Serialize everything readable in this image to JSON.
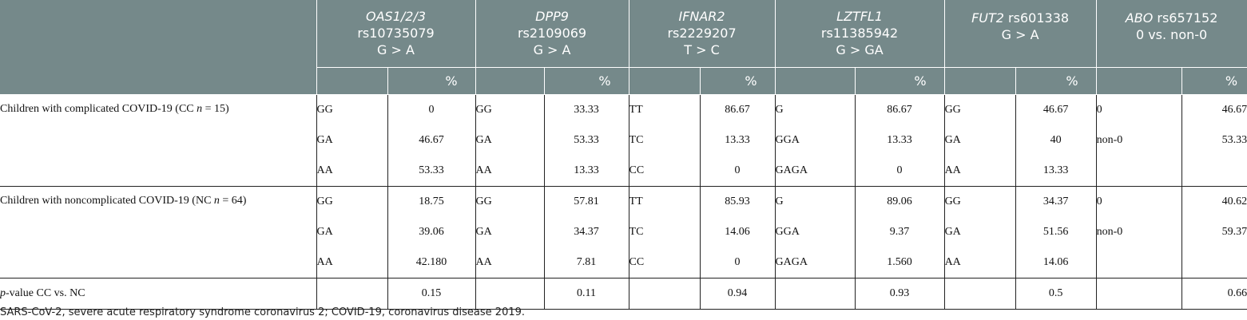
{
  "header": {
    "genes": [
      {
        "gene": "OAS1/2/3",
        "gene_suffix": "",
        "line2": "rs10735079",
        "line3": "G > A"
      },
      {
        "gene": "DPP9",
        "gene_suffix": "",
        "line2": "rs2109069",
        "line3": "G > A"
      },
      {
        "gene": "IFNAR2",
        "gene_suffix": "",
        "line2": "rs2229207",
        "line3": "T > C"
      },
      {
        "gene": "LZTFL1",
        "gene_suffix": "",
        "line2": "rs11385942",
        "line3": "G > GA"
      },
      {
        "gene": "FUT2",
        "gene_suffix": " rs601338",
        "line2": "G > A",
        "line3": ""
      },
      {
        "gene": "ABO",
        "gene_suffix": " rs657152",
        "line2": "0 vs. non-0",
        "line3": ""
      }
    ],
    "pct_label": "%"
  },
  "groups": [
    {
      "label_pre": "Children with complicated COVID-19 (CC ",
      "label_n": "n",
      "label_post": " = 15)",
      "rows": [
        {
          "cells": [
            [
              "GG",
              "0"
            ],
            [
              "GG",
              "33.33"
            ],
            [
              "TT",
              "86.67"
            ],
            [
              "G",
              "86.67"
            ],
            [
              "GG",
              "46.67"
            ],
            [
              "0",
              "46.67"
            ]
          ]
        },
        {
          "cells": [
            [
              "GA",
              "46.67"
            ],
            [
              "GA",
              "53.33"
            ],
            [
              "TC",
              "13.33"
            ],
            [
              "GGA",
              "13.33"
            ],
            [
              "GA",
              "40"
            ],
            [
              "non-0",
              "53.33"
            ]
          ]
        },
        {
          "cells": [
            [
              "AA",
              "53.33"
            ],
            [
              "AA",
              "13.33"
            ],
            [
              "CC",
              "0"
            ],
            [
              "GAGA",
              "0"
            ],
            [
              "AA",
              "13.33"
            ],
            [
              "",
              ""
            ]
          ]
        }
      ]
    },
    {
      "label_pre": "Children with noncomplicated COVID-19 (NC ",
      "label_n": "n",
      "label_post": " = 64)",
      "rows": [
        {
          "cells": [
            [
              "GG",
              "18.75"
            ],
            [
              "GG",
              "57.81"
            ],
            [
              "TT",
              "85.93"
            ],
            [
              "G",
              "89.06"
            ],
            [
              "GG",
              "34.37"
            ],
            [
              "0",
              "40.62"
            ]
          ]
        },
        {
          "cells": [
            [
              "GA",
              "39.06"
            ],
            [
              "GA",
              "34.37"
            ],
            [
              "TC",
              "14.06"
            ],
            [
              "GGA",
              "9.37"
            ],
            [
              "GA",
              "51.56"
            ],
            [
              "non-0",
              "59.37"
            ]
          ]
        },
        {
          "cells": [
            [
              "AA",
              "42.180"
            ],
            [
              "AA",
              "7.81"
            ],
            [
              "CC",
              "0"
            ],
            [
              "GAGA",
              "1.560"
            ],
            [
              "AA",
              "14.06"
            ],
            [
              "",
              ""
            ]
          ]
        }
      ]
    }
  ],
  "pvalue_row": {
    "label_p": "p",
    "label_rest": "-value CC vs. NC",
    "values": [
      "0.15",
      "0.11",
      "0.94",
      "0.93",
      "0.5",
      "0.66"
    ]
  },
  "footnote": "SARS-CoV-2, severe acute respiratory syndrome coronavirus 2; COVID-19, coronavirus disease 2019."
}
